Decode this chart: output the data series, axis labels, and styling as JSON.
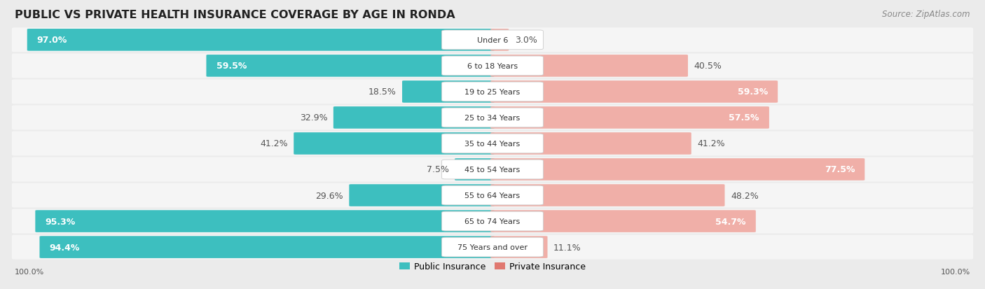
{
  "title": "PUBLIC VS PRIVATE HEALTH INSURANCE COVERAGE BY AGE IN RONDA",
  "source": "Source: ZipAtlas.com",
  "categories": [
    "Under 6",
    "6 to 18 Years",
    "19 to 25 Years",
    "25 to 34 Years",
    "35 to 44 Years",
    "45 to 54 Years",
    "55 to 64 Years",
    "65 to 74 Years",
    "75 Years and over"
  ],
  "public_values": [
    97.0,
    59.5,
    18.5,
    32.9,
    41.2,
    7.5,
    29.6,
    95.3,
    94.4
  ],
  "private_values": [
    3.0,
    40.5,
    59.3,
    57.5,
    41.2,
    77.5,
    48.2,
    54.7,
    11.1
  ],
  "public_color": "#3DBFBF",
  "private_color": "#E07870",
  "private_color_light": "#F0AFA8",
  "public_color_light": "#80D4D4",
  "background_color": "#EBEBEB",
  "row_bg_color": "#F5F5F5",
  "title_fontsize": 11.5,
  "source_fontsize": 8.5,
  "value_fontsize": 9,
  "label_fontsize": 8,
  "legend_fontsize": 9,
  "axis_label_fontsize": 8
}
